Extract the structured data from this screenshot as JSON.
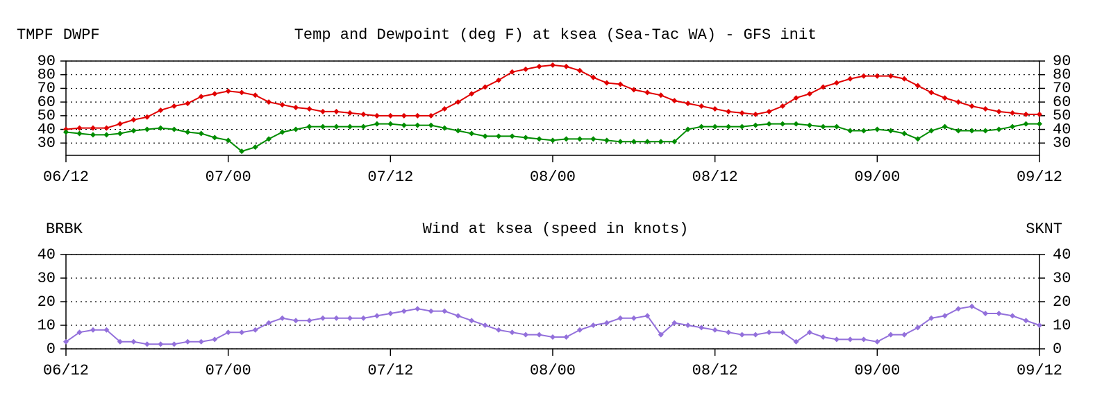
{
  "chart_data": [
    {
      "type": "line",
      "title": "Temp and Dewpoint (deg F) at ksea  (Sea-Tac WA) - GFS init",
      "x": [
        0,
        1,
        2,
        3,
        4,
        5,
        6,
        7,
        8,
        9,
        10,
        11,
        12,
        13,
        14,
        15,
        16,
        17,
        18,
        19,
        20,
        21,
        22,
        23,
        24,
        25,
        26,
        27,
        28,
        29,
        30,
        31,
        32,
        33,
        34,
        35,
        36,
        37,
        38,
        39,
        40,
        41,
        42,
        43,
        44,
        45,
        46,
        47,
        48,
        49,
        50,
        51,
        52,
        53,
        54,
        55,
        56,
        57,
        58,
        59,
        60,
        61,
        62,
        63,
        64,
        65,
        66,
        67,
        68,
        69,
        70,
        71,
        72
      ],
      "series": [
        {
          "name": "TMPF",
          "color": "#e00000",
          "values": [
            40,
            41,
            41,
            41,
            44,
            47,
            49,
            54,
            57,
            59,
            64,
            66,
            68,
            67,
            65,
            60,
            58,
            56,
            55,
            53,
            53,
            52,
            51,
            50,
            50,
            50,
            50,
            50,
            55,
            60,
            66,
            71,
            76,
            82,
            84,
            86,
            87,
            86,
            83,
            78,
            74,
            73,
            69,
            67,
            65,
            61,
            59,
            57,
            55,
            53,
            52,
            51,
            53,
            57,
            63,
            66,
            71,
            74,
            77,
            79,
            79,
            79,
            77,
            72,
            67,
            63,
            60,
            57,
            55,
            53,
            52,
            51,
            51
          ]
        },
        {
          "name": "DWPF",
          "color": "#008c00",
          "values": [
            38,
            37,
            36,
            36,
            37,
            39,
            40,
            41,
            40,
            38,
            37,
            34,
            32,
            24,
            27,
            33,
            38,
            40,
            42,
            42,
            42,
            42,
            42,
            44,
            44,
            43,
            43,
            43,
            41,
            39,
            37,
            35,
            35,
            35,
            34,
            33,
            32,
            33,
            33,
            33,
            32,
            31,
            31,
            31,
            31,
            31,
            40,
            42,
            42,
            42,
            42,
            43,
            44,
            44,
            44,
            43,
            42,
            42,
            39,
            39,
            40,
            39,
            37,
            33,
            39,
            42,
            39,
            39,
            39,
            40,
            42,
            44,
            44
          ]
        }
      ],
      "xlim": [
        0,
        72
      ],
      "xticks": [
        {
          "value": 0,
          "label": "06/12"
        },
        {
          "value": 12,
          "label": "07/00"
        },
        {
          "value": 24,
          "label": "07/12"
        },
        {
          "value": 36,
          "label": "08/00"
        },
        {
          "value": 48,
          "label": "08/12"
        },
        {
          "value": 60,
          "label": "09/00"
        },
        {
          "value": 72,
          "label": "09/12"
        }
      ],
      "ylim": [
        21,
        90
      ],
      "yticks": [
        30,
        40,
        50,
        60,
        70,
        80,
        90
      ],
      "grid": true
    },
    {
      "type": "line",
      "title": "Wind at  ksea  (speed in knots)",
      "left_label": "BRBK",
      "x": [
        0,
        1,
        2,
        3,
        4,
        5,
        6,
        7,
        8,
        9,
        10,
        11,
        12,
        13,
        14,
        15,
        16,
        17,
        18,
        19,
        20,
        21,
        22,
        23,
        24,
        25,
        26,
        27,
        28,
        29,
        30,
        31,
        32,
        33,
        34,
        35,
        36,
        37,
        38,
        39,
        40,
        41,
        42,
        43,
        44,
        45,
        46,
        47,
        48,
        49,
        50,
        51,
        52,
        53,
        54,
        55,
        56,
        57,
        58,
        59,
        60,
        61,
        62,
        63,
        64,
        65,
        66,
        67,
        68,
        69,
        70,
        71,
        72
      ],
      "series": [
        {
          "name": "SKNT",
          "color": "#9370db",
          "values": [
            3,
            7,
            8,
            8,
            3,
            3,
            2,
            2,
            2,
            3,
            3,
            4,
            7,
            7,
            8,
            11,
            13,
            12,
            12,
            13,
            13,
            13,
            13,
            14,
            15,
            16,
            17,
            16,
            16,
            14,
            12,
            10,
            8,
            7,
            6,
            6,
            5,
            5,
            8,
            10,
            11,
            13,
            13,
            14,
            6,
            11,
            10,
            9,
            8,
            7,
            6,
            6,
            7,
            7,
            3,
            7,
            5,
            4,
            4,
            4,
            3,
            6,
            6,
            9,
            13,
            14,
            17,
            18,
            15,
            15,
            14,
            12,
            10
          ]
        }
      ],
      "xlim": [
        0,
        72
      ],
      "xticks": [
        {
          "value": 0,
          "label": "06/12"
        },
        {
          "value": 12,
          "label": "07/00"
        },
        {
          "value": 24,
          "label": "07/12"
        },
        {
          "value": 36,
          "label": "08/00"
        },
        {
          "value": 48,
          "label": "08/12"
        },
        {
          "value": 60,
          "label": "09/00"
        },
        {
          "value": 72,
          "label": "09/12"
        }
      ],
      "ylim": [
        0,
        40
      ],
      "yticks": [
        0,
        10,
        20,
        30,
        40
      ],
      "grid": true
    }
  ]
}
